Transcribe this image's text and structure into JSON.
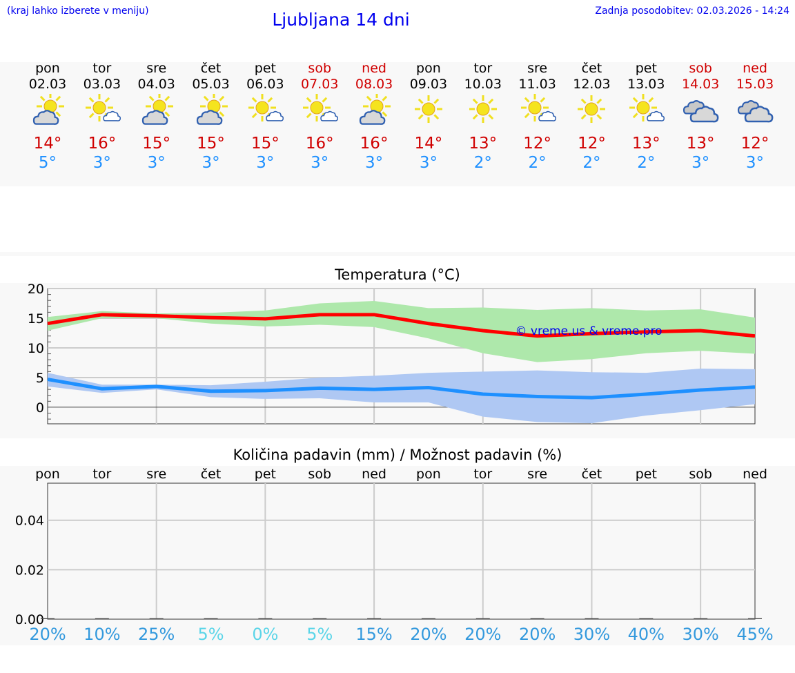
{
  "header": {
    "hint": "(kraj lahko izberete v meniju)",
    "title": "Ljubljana 14 dni",
    "updated": "Zadnja posodobitev: 02.03.2026 - 14:24"
  },
  "days": [
    {
      "name": "pon",
      "date": "02.03",
      "icon": "partly-cloudy-grey",
      "max": "14°",
      "min": "5°",
      "weekend": false
    },
    {
      "name": "tor",
      "date": "03.03",
      "icon": "sun-small-cloud",
      "max": "16°",
      "min": "3°",
      "weekend": false
    },
    {
      "name": "sre",
      "date": "04.03",
      "icon": "partly-cloudy-grey",
      "max": "15°",
      "min": "3°",
      "weekend": false
    },
    {
      "name": "čet",
      "date": "05.03",
      "icon": "partly-cloudy-grey",
      "max": "15°",
      "min": "3°",
      "weekend": false
    },
    {
      "name": "pet",
      "date": "06.03",
      "icon": "sun-small-cloud",
      "max": "15°",
      "min": "3°",
      "weekend": false
    },
    {
      "name": "sob",
      "date": "07.03",
      "icon": "sun-small-cloud",
      "max": "16°",
      "min": "3°",
      "weekend": true
    },
    {
      "name": "ned",
      "date": "08.03",
      "icon": "partly-cloudy-grey",
      "max": "16°",
      "min": "3°",
      "weekend": true
    },
    {
      "name": "pon",
      "date": "09.03",
      "icon": "sun",
      "max": "14°",
      "min": "3°",
      "weekend": false
    },
    {
      "name": "tor",
      "date": "10.03",
      "icon": "sun",
      "max": "13°",
      "min": "2°",
      "weekend": false
    },
    {
      "name": "sre",
      "date": "11.03",
      "icon": "sun-small-cloud",
      "max": "12°",
      "min": "2°",
      "weekend": false
    },
    {
      "name": "čet",
      "date": "12.03",
      "icon": "sun",
      "max": "12°",
      "min": "2°",
      "weekend": false
    },
    {
      "name": "pet",
      "date": "13.03",
      "icon": "sun-small-cloud",
      "max": "13°",
      "min": "2°",
      "weekend": false
    },
    {
      "name": "sob",
      "date": "14.03",
      "icon": "cloudy",
      "max": "13°",
      "min": "3°",
      "weekend": true
    },
    {
      "name": "ned",
      "date": "15.03",
      "icon": "cloudy",
      "max": "12°",
      "min": "3°",
      "weekend": true
    }
  ],
  "colors": {
    "max": "#ff0000",
    "min": "#1e90ff",
    "max_band": "#aee8ab",
    "min_band": "#afc8f3",
    "pct_high": "#3399dd",
    "pct_low": "#5bd5e8"
  },
  "chart_data": [
    {
      "type": "line",
      "title": "Temperatura (°C)",
      "watermark": "© vreme.us & vreme.pro",
      "ylim": [
        -2.8,
        20
      ],
      "yticks": [
        0,
        5,
        10,
        15,
        20
      ],
      "grid": true,
      "x": [
        "02.03",
        "03.03",
        "04.03",
        "05.03",
        "06.03",
        "07.03",
        "08.03",
        "09.03",
        "10.03",
        "11.03",
        "12.03",
        "13.03",
        "14.03",
        "15.03"
      ],
      "series": [
        {
          "values": [
            14.1,
            15.6,
            15.4,
            15.1,
            14.9,
            15.6,
            15.6,
            14.1,
            12.9,
            12.0,
            12.4,
            12.7,
            12.9,
            12.0
          ],
          "upper": [
            15.2,
            16.2,
            15.8,
            15.9,
            16.3,
            17.5,
            17.9,
            16.7,
            16.8,
            16.4,
            16.7,
            16.3,
            16.5,
            15.1
          ],
          "lower": [
            12.9,
            15.0,
            15.0,
            14.1,
            13.6,
            13.9,
            13.5,
            11.6,
            9.1,
            7.6,
            8.1,
            9.1,
            9.5,
            9.0
          ]
        },
        {
          "values": [
            4.7,
            3.1,
            3.5,
            2.7,
            2.8,
            3.2,
            3.0,
            3.3,
            2.2,
            1.8,
            1.6,
            2.2,
            2.9,
            3.4
          ],
          "upper": [
            5.8,
            3.8,
            3.8,
            3.7,
            4.3,
            5.0,
            5.3,
            5.8,
            6.0,
            6.2,
            5.9,
            5.8,
            6.5,
            6.4
          ],
          "lower": [
            3.5,
            2.4,
            3.0,
            1.7,
            1.4,
            1.5,
            0.8,
            0.8,
            -1.6,
            -2.5,
            -2.7,
            -1.4,
            -0.5,
            0.5
          ]
        }
      ]
    },
    {
      "type": "bar",
      "title": "Količina padavin (mm) / Možnost padavin (%)",
      "ylim": [
        0,
        0.055
      ],
      "yticks": [
        "0.00",
        "0.02",
        "0.04"
      ],
      "grid": true,
      "categories": [
        "pon",
        "tor",
        "sre",
        "čet",
        "pet",
        "sob",
        "ned",
        "pon",
        "tor",
        "sre",
        "čet",
        "pet",
        "sob",
        "ned"
      ],
      "values": [
        0,
        0,
        0,
        0,
        0,
        0,
        0,
        0,
        0,
        0,
        0,
        0,
        0,
        0
      ],
      "probability": [
        "20%",
        "10%",
        "25%",
        "5%",
        "0%",
        "5%",
        "15%",
        "20%",
        "20%",
        "20%",
        "30%",
        "40%",
        "30%",
        "45%"
      ]
    }
  ]
}
